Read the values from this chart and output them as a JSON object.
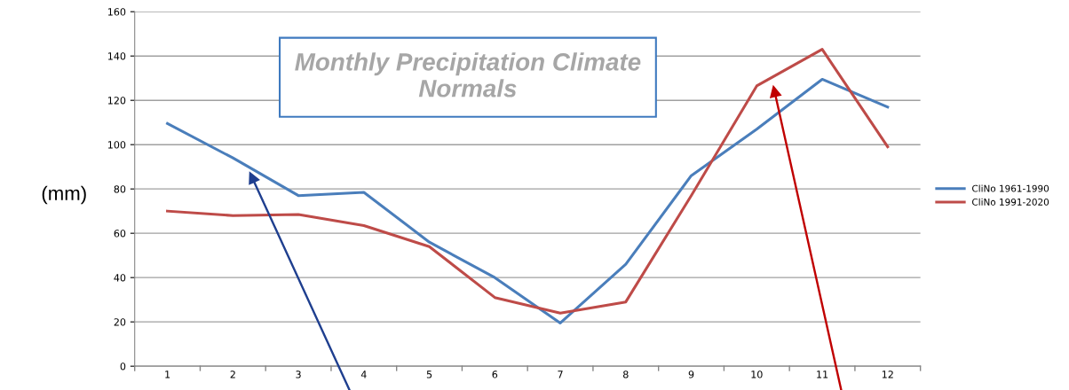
{
  "chart_data": {
    "type": "line",
    "title": "Monthly Precipitation Climate Normals",
    "ylabel": "(mm)",
    "categories": [
      "1",
      "2",
      "3",
      "4",
      "5",
      "6",
      "7",
      "8",
      "9",
      "10",
      "11",
      "12"
    ],
    "series": [
      {
        "name": "CliNo 1961-1990",
        "color": "#4a7ebb",
        "values": [
          109.5,
          94,
          77,
          78.5,
          56,
          40,
          19.5,
          46,
          86,
          107,
          129.5,
          117
        ]
      },
      {
        "name": "CliNo 1991-2020",
        "color": "#be4b48",
        "values": [
          70,
          68,
          68.5,
          63.5,
          54,
          31,
          24,
          29,
          77,
          126.5,
          143,
          99
        ]
      }
    ],
    "ylim": [
      0,
      160
    ],
    "yticks": [
      0,
      20,
      40,
      60,
      80,
      100,
      120,
      140,
      160
    ],
    "grid": "y",
    "legend": "right",
    "marker": "none",
    "line_style": "solid"
  }
}
